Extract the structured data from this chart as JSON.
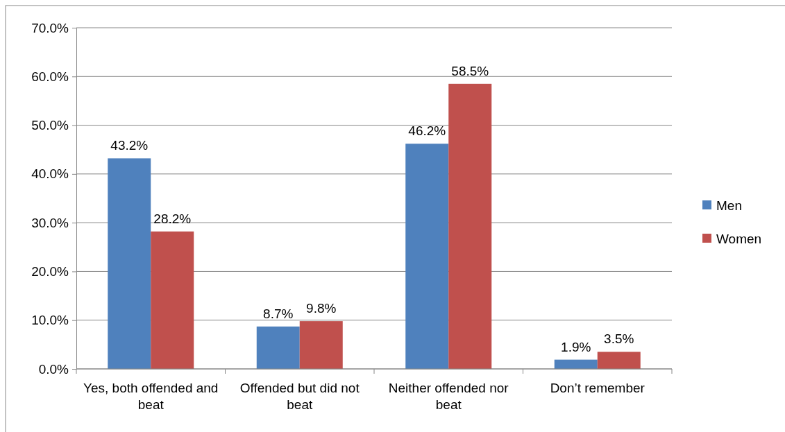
{
  "chart_data": {
    "type": "bar",
    "categories": [
      "Yes, both offended and beat",
      "Offended but did not beat",
      "Neither offended nor beat",
      "Don’t remember"
    ],
    "series": [
      {
        "name": "Men",
        "color": "#4f81bd",
        "values": [
          43.2,
          8.7,
          46.2,
          1.9
        ],
        "value_labels": [
          "43.2%",
          "8.7%",
          "46.2%",
          "1.9%"
        ]
      },
      {
        "name": "Women",
        "color": "#c0504d",
        "values": [
          28.2,
          9.8,
          58.5,
          3.5
        ],
        "value_labels": [
          "28.2%",
          "9.8%",
          "58.5%",
          "3.5%"
        ]
      }
    ],
    "ylim": [
      0,
      70
    ],
    "yticks": [
      {
        "value": 0,
        "label": "0.0%"
      },
      {
        "value": 10,
        "label": "10.0%"
      },
      {
        "value": 20,
        "label": "20.0%"
      },
      {
        "value": 30,
        "label": "30.0%"
      },
      {
        "value": 40,
        "label": "40.0%"
      },
      {
        "value": 50,
        "label": "50.0%"
      },
      {
        "value": 60,
        "label": "60.0%"
      },
      {
        "value": 70,
        "label": "70.0%"
      }
    ],
    "grid": "y",
    "legend": "right"
  }
}
